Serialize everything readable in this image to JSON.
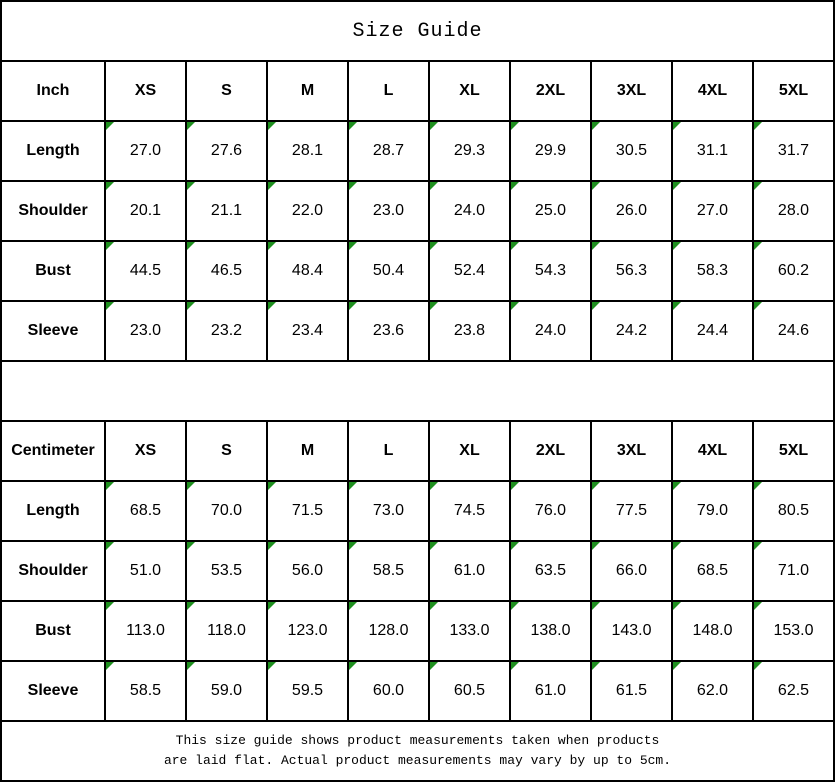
{
  "title": "Size Guide",
  "colors": {
    "background": "#ffffff",
    "border": "#000000",
    "text": "#000000",
    "marker_green": "#1e8f1e"
  },
  "sizes": [
    "XS",
    "S",
    "M",
    "L",
    "XL",
    "2XL",
    "3XL",
    "4XL",
    "5XL"
  ],
  "inch_table": {
    "unit_label": "Inch",
    "rows": [
      {
        "label": "Length",
        "values": [
          "27.0",
          "27.6",
          "28.1",
          "28.7",
          "29.3",
          "29.9",
          "30.5",
          "31.1",
          "31.7"
        ]
      },
      {
        "label": "Shoulder",
        "values": [
          "20.1",
          "21.1",
          "22.0",
          "23.0",
          "24.0",
          "25.0",
          "26.0",
          "27.0",
          "28.0"
        ]
      },
      {
        "label": "Bust",
        "values": [
          "44.5",
          "46.5",
          "48.4",
          "50.4",
          "52.4",
          "54.3",
          "56.3",
          "58.3",
          "60.2"
        ]
      },
      {
        "label": "Sleeve",
        "values": [
          "23.0",
          "23.2",
          "23.4",
          "23.6",
          "23.8",
          "24.0",
          "24.2",
          "24.4",
          "24.6"
        ]
      }
    ]
  },
  "cm_table": {
    "unit_label": "Centimeter",
    "rows": [
      {
        "label": "Length",
        "values": [
          "68.5",
          "70.0",
          "71.5",
          "73.0",
          "74.5",
          "76.0",
          "77.5",
          "79.0",
          "80.5"
        ]
      },
      {
        "label": "Shoulder",
        "values": [
          "51.0",
          "53.5",
          "56.0",
          "58.5",
          "61.0",
          "63.5",
          "66.0",
          "68.5",
          "71.0"
        ]
      },
      {
        "label": "Bust",
        "values": [
          "113.0",
          "118.0",
          "123.0",
          "128.0",
          "133.0",
          "138.0",
          "143.0",
          "148.0",
          "153.0"
        ]
      },
      {
        "label": "Sleeve",
        "values": [
          "58.5",
          "59.0",
          "59.5",
          "60.0",
          "60.5",
          "61.0",
          "61.5",
          "62.0",
          "62.5"
        ]
      }
    ]
  },
  "footer": {
    "line1": "This size guide shows product measurements taken when products",
    "line2": "are laid flat. Actual product measurements may vary by up to 5cm."
  }
}
